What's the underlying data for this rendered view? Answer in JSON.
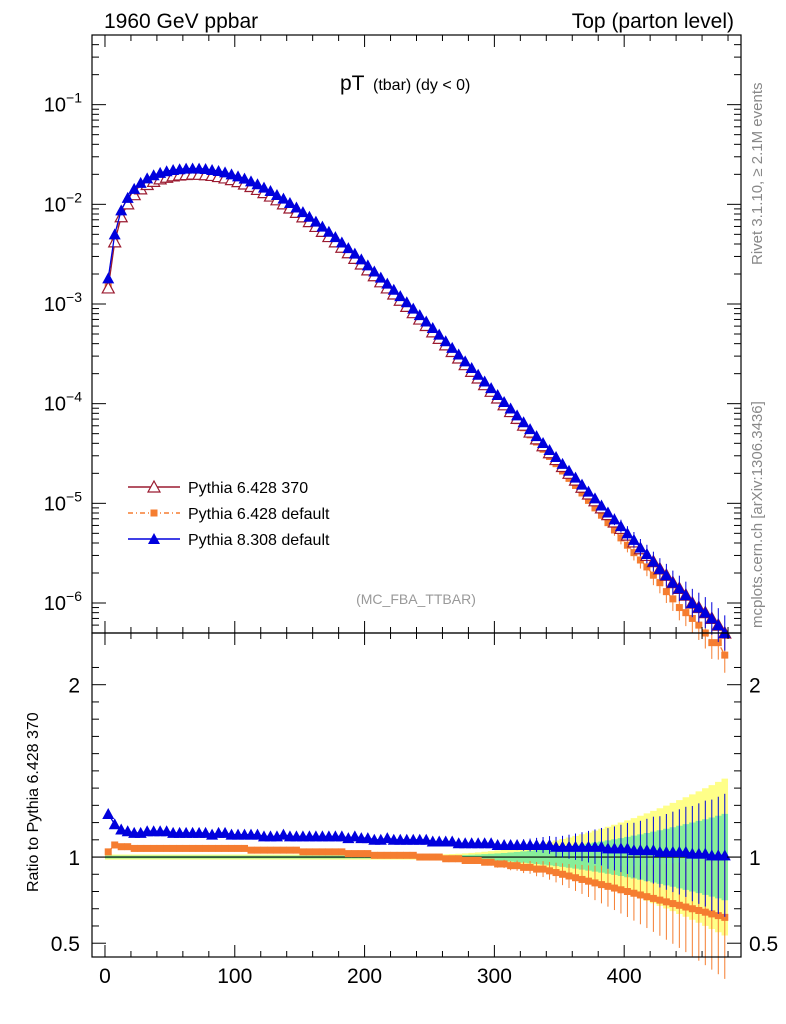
{
  "header": {
    "left": "1960 GeV ppbar",
    "right": "Top (parton level)"
  },
  "plot_title": {
    "main": "pT",
    "sub": "(tbar) (dy < 0)"
  },
  "analysis_tag": "(MC_FBA_TTBAR)",
  "side_labels": {
    "rivet": "Rivet 3.1.10, ≥ 2.1M events",
    "mcplots": "mcplots.cern.ch [arXiv:1306.3436]"
  },
  "colors": {
    "p6_370": "#9b1b30",
    "p6_default": "#f57d30",
    "p8_default": "#0000dd",
    "band_yellow": "#ffff88",
    "band_green": "#88ee99"
  },
  "chart_data": [
    {
      "type": "line",
      "panel": "main",
      "yscale": "log",
      "xlim": [
        -10,
        490
      ],
      "ylim": [
        5e-07,
        0.5
      ],
      "y_tick_labels": [
        "10^-6",
        "10^-5",
        "10^-4",
        "10^-3",
        "10^-2",
        "10^-1"
      ],
      "legend_position": "bottom-left",
      "x": [
        2.5,
        7.5,
        12.5,
        17.5,
        22.5,
        27.5,
        32.5,
        37.5,
        42.5,
        47.5,
        52.5,
        57.5,
        62.5,
        67.5,
        72.5,
        77.5,
        82.5,
        87.5,
        92.5,
        97.5,
        102.5,
        107.5,
        112.5,
        117.5,
        122.5,
        127.5,
        132.5,
        137.5,
        142.5,
        147.5,
        152.5,
        157.5,
        162.5,
        167.5,
        172.5,
        177.5,
        182.5,
        187.5,
        192.5,
        197.5,
        202.5,
        207.5,
        212.5,
        217.5,
        222.5,
        227.5,
        232.5,
        237.5,
        242.5,
        247.5,
        252.5,
        257.5,
        262.5,
        267.5,
        272.5,
        277.5,
        282.5,
        287.5,
        292.5,
        297.5,
        302.5,
        307.5,
        312.5,
        317.5,
        322.5,
        327.5,
        332.5,
        337.5,
        342.5,
        347.5,
        352.5,
        357.5,
        362.5,
        367.5,
        372.5,
        377.5,
        382.5,
        387.5,
        392.5,
        397.5,
        402.5,
        407.5,
        412.5,
        417.5,
        422.5,
        427.5,
        432.5,
        437.5,
        442.5,
        447.5,
        452.5,
        457.5,
        462.5,
        467.5,
        472.5,
        477.5
      ],
      "series": [
        {
          "name": "Pythia 6.428 370",
          "values": [
            0.00145,
            0.0042,
            0.0075,
            0.0101,
            0.0125,
            0.0143,
            0.0158,
            0.017,
            0.018,
            0.0187,
            0.0193,
            0.0197,
            0.0199,
            0.0201,
            0.02,
            0.0198,
            0.0195,
            0.019,
            0.0184,
            0.0177,
            0.0169,
            0.016,
            0.0151,
            0.0141,
            0.0131,
            0.0121,
            0.0111,
            0.0101,
            0.00918,
            0.0083,
            0.00748,
            0.00671,
            0.006,
            0.00535,
            0.00475,
            0.0042,
            0.00371,
            0.00327,
            0.00287,
            0.00252,
            0.0022,
            0.00192,
            0.00167,
            0.00145,
            0.00126,
            0.00109,
            0.000946,
            0.000818,
            0.000706,
            0.000609,
            0.000525,
            0.000452,
            0.000389,
            0.000334,
            0.000287,
            0.000246,
            0.000211,
            0.000181,
            0.000155,
            0.000133,
            0.000114,
            9.74e-05,
            8.33e-05,
            7.12e-05,
            6.08e-05,
            5.19e-05,
            4.43e-05,
            3.78e-05,
            3.22e-05,
            2.75e-05,
            2.34e-05,
            2e-05,
            1.71e-05,
            1.45e-05,
            1.24e-05,
            1.06e-05,
            9e-06,
            7.7e-06,
            6.5e-06,
            5.6e-06,
            4.8e-06,
            4.1e-06,
            3.5e-06,
            3e-06,
            2.6e-06,
            2.2e-06,
            1.9e-06,
            1.6e-06,
            1.4e-06,
            1.2e-06,
            1e-06,
            9e-07,
            8e-07,
            7e-07,
            6e-07,
            5e-07
          ]
        },
        {
          "name": "Pythia 6.428 default",
          "values": [
            0.00149,
            0.0045,
            0.008,
            0.0107,
            0.0132,
            0.0151,
            0.0167,
            0.018,
            0.019,
            0.0197,
            0.0203,
            0.0207,
            0.0209,
            0.0211,
            0.021,
            0.0208,
            0.0204,
            0.0199,
            0.0193,
            0.0185,
            0.0177,
            0.0167,
            0.0157,
            0.0147,
            0.0136,
            0.0126,
            0.0115,
            0.0105,
            0.00952,
            0.00859,
            0.00773,
            0.00693,
            0.00619,
            0.00551,
            0.00489,
            0.00432,
            0.00381,
            0.00334,
            0.00293,
            0.00257,
            0.00224,
            0.00195,
            0.00169,
            0.00147,
            0.00127,
            0.0011,
            0.000954,
            0.000823,
            0.000709,
            0.00061,
            0.000524,
            0.00045,
            0.000386,
            0.00033,
            0.000283,
            0.000242,
            0.000207,
            0.000177,
            0.000151,
            0.000129,
            0.00011,
            9.33e-05,
            7.94e-05,
            6.75e-05,
            5.73e-05,
            4.86e-05,
            4.12e-05,
            3.49e-05,
            2.95e-05,
            2.5e-05,
            2.11e-05,
            1.78e-05,
            1.51e-05,
            1.27e-05,
            1.07e-05,
            9e-06,
            7.6e-06,
            6.4e-06,
            5.4e-06,
            4.5e-06,
            3.8e-06,
            3.2e-06,
            2.7e-06,
            2.3e-06,
            1.9e-06,
            1.6e-06,
            1.3e-06,
            1.1e-06,
            9e-07,
            8e-07,
            7e-07,
            6e-07,
            5e-07,
            4e-07,
            4e-07,
            3e-07
          ]
        },
        {
          "name": "Pythia 8.308 default",
          "values": [
            0.00181,
            0.005,
            0.0087,
            0.0116,
            0.0143,
            0.0164,
            0.0182,
            0.0196,
            0.0207,
            0.0215,
            0.0221,
            0.0225,
            0.0228,
            0.0229,
            0.0228,
            0.0226,
            0.0221,
            0.0216,
            0.0209,
            0.02,
            0.0191,
            0.0181,
            0.017,
            0.0159,
            0.0147,
            0.0136,
            0.0124,
            0.0114,
            0.0103,
            0.00929,
            0.00836,
            0.0075,
            0.0067,
            0.00597,
            0.0053,
            0.00469,
            0.00414,
            0.00364,
            0.0032,
            0.0028,
            0.00244,
            0.00212,
            0.00184,
            0.0016,
            0.00139,
            0.0012,
            0.00104,
            0.000898,
            0.000774,
            0.000667,
            0.000574,
            0.000493,
            0.000423,
            0.000363,
            0.000311,
            0.000266,
            0.000228,
            0.000195,
            0.000167,
            0.000143,
            0.000122,
            0.000104,
            8.93e-05,
            7.62e-05,
            6.5e-05,
            5.55e-05,
            4.73e-05,
            4.03e-05,
            3.43e-05,
            2.92e-05,
            2.49e-05,
            2.12e-05,
            1.81e-05,
            1.54e-05,
            1.31e-05,
            1.12e-05,
            9.5e-06,
            8.1e-06,
            6.9e-06,
            5.9e-06,
            5e-06,
            4.3e-06,
            3.6e-06,
            3.1e-06,
            2.6e-06,
            2.2e-06,
            1.9e-06,
            1.6e-06,
            1.4e-06,
            1.2e-06,
            1e-06,
            9e-07,
            8e-07,
            7e-07,
            6e-07,
            5e-07
          ]
        }
      ]
    },
    {
      "type": "line",
      "panel": "ratio",
      "ylabel": "Ratio to Pythia 6.428 370",
      "xlim": [
        -10,
        490
      ],
      "ylim": [
        0.42,
        2.3
      ],
      "x_tick_labels": [
        "0",
        "100",
        "200",
        "300",
        "400"
      ],
      "y_tick_labels": [
        "0.5",
        "1",
        "2"
      ],
      "x": [
        2.5,
        7.5,
        12.5,
        17.5,
        22.5,
        27.5,
        32.5,
        37.5,
        42.5,
        47.5,
        52.5,
        57.5,
        62.5,
        67.5,
        72.5,
        77.5,
        82.5,
        87.5,
        92.5,
        97.5,
        102.5,
        107.5,
        112.5,
        117.5,
        122.5,
        127.5,
        132.5,
        137.5,
        142.5,
        147.5,
        152.5,
        157.5,
        162.5,
        167.5,
        172.5,
        177.5,
        182.5,
        187.5,
        192.5,
        197.5,
        202.5,
        207.5,
        212.5,
        217.5,
        222.5,
        227.5,
        232.5,
        237.5,
        242.5,
        247.5,
        252.5,
        257.5,
        262.5,
        267.5,
        272.5,
        277.5,
        282.5,
        287.5,
        292.5,
        297.5,
        302.5,
        307.5,
        312.5,
        317.5,
        322.5,
        327.5,
        332.5,
        337.5,
        342.5,
        347.5,
        352.5,
        357.5,
        362.5,
        367.5,
        372.5,
        377.5,
        382.5,
        387.5,
        392.5,
        397.5,
        402.5,
        407.5,
        412.5,
        417.5,
        422.5,
        427.5,
        432.5,
        437.5,
        442.5,
        447.5,
        452.5,
        457.5,
        462.5,
        467.5,
        472.5,
        477.5
      ],
      "series": [
        {
          "name": "Pythia 6.428 default",
          "values": [
            1.03,
            1.07,
            1.06,
            1.06,
            1.05,
            1.05,
            1.05,
            1.05,
            1.05,
            1.05,
            1.05,
            1.05,
            1.05,
            1.05,
            1.05,
            1.05,
            1.05,
            1.05,
            1.05,
            1.05,
            1.05,
            1.05,
            1.04,
            1.04,
            1.04,
            1.04,
            1.04,
            1.04,
            1.04,
            1.04,
            1.03,
            1.03,
            1.03,
            1.03,
            1.03,
            1.03,
            1.03,
            1.02,
            1.02,
            1.02,
            1.02,
            1.01,
            1.01,
            1.01,
            1.01,
            1.01,
            1.01,
            1.01,
            1.0,
            1.0,
            1.0,
            1.0,
            0.99,
            0.99,
            0.99,
            0.98,
            0.98,
            0.98,
            0.97,
            0.97,
            0.96,
            0.96,
            0.95,
            0.95,
            0.94,
            0.94,
            0.93,
            0.93,
            0.92,
            0.91,
            0.9,
            0.89,
            0.88,
            0.87,
            0.86,
            0.85,
            0.84,
            0.83,
            0.82,
            0.81,
            0.8,
            0.79,
            0.78,
            0.77,
            0.76,
            0.75,
            0.74,
            0.73,
            0.72,
            0.71,
            0.7,
            0.69,
            0.68,
            0.67,
            0.66,
            0.65
          ]
        },
        {
          "name": "Pythia 8.308 default",
          "values": [
            1.25,
            1.19,
            1.16,
            1.15,
            1.14,
            1.14,
            1.15,
            1.15,
            1.15,
            1.15,
            1.14,
            1.14,
            1.14,
            1.14,
            1.14,
            1.14,
            1.13,
            1.14,
            1.14,
            1.13,
            1.13,
            1.13,
            1.13,
            1.13,
            1.12,
            1.12,
            1.12,
            1.13,
            1.12,
            1.12,
            1.12,
            1.12,
            1.12,
            1.12,
            1.12,
            1.12,
            1.12,
            1.11,
            1.12,
            1.11,
            1.11,
            1.1,
            1.1,
            1.11,
            1.1,
            1.1,
            1.1,
            1.1,
            1.1,
            1.1,
            1.09,
            1.09,
            1.09,
            1.09,
            1.08,
            1.08,
            1.08,
            1.08,
            1.08,
            1.08,
            1.07,
            1.07,
            1.07,
            1.07,
            1.07,
            1.07,
            1.07,
            1.07,
            1.07,
            1.06,
            1.06,
            1.06,
            1.06,
            1.06,
            1.06,
            1.06,
            1.06,
            1.05,
            1.05,
            1.05,
            1.05,
            1.04,
            1.04,
            1.04,
            1.04,
            1.03,
            1.03,
            1.03,
            1.03,
            1.03,
            1.02,
            1.02,
            1.02,
            1.01,
            1.01,
            1.01
          ]
        }
      ]
    }
  ]
}
